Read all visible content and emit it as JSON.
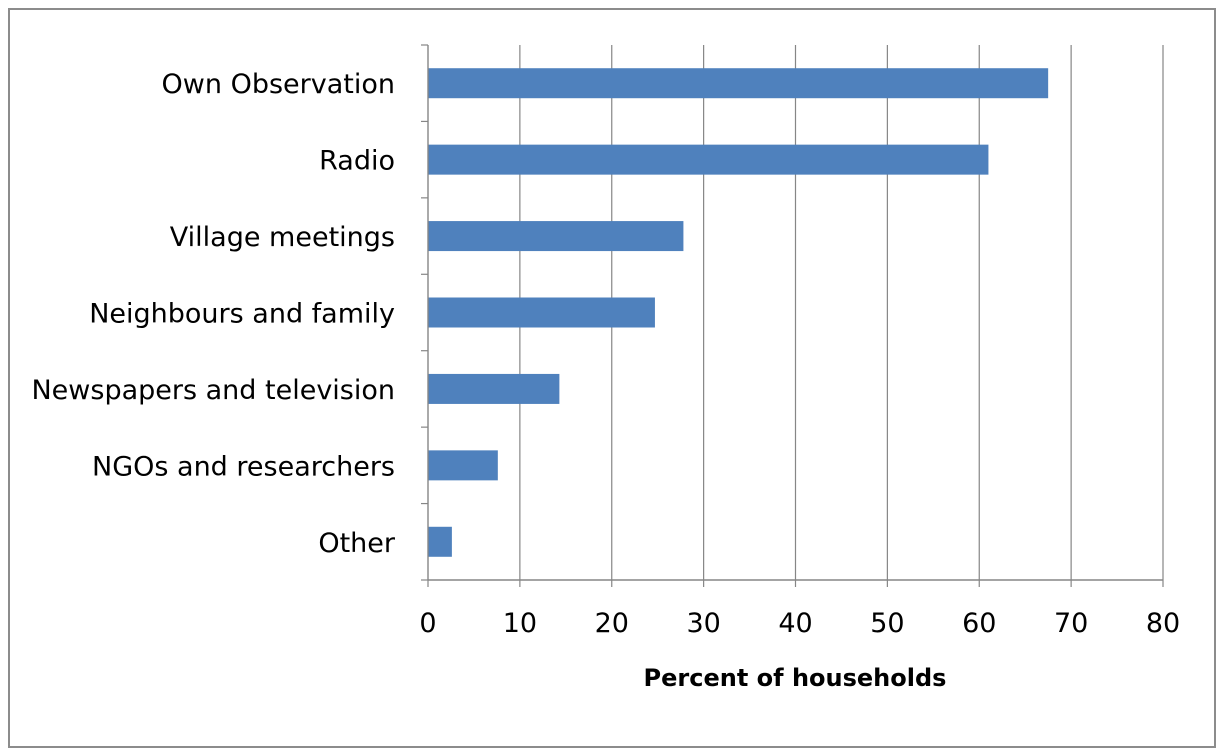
{
  "chart_data": {
    "type": "bar",
    "orientation": "horizontal",
    "categories": [
      "Own Observation",
      "Radio",
      "Village meetings",
      "Neighbours and family",
      "Newspapers and television",
      "NGOs and researchers",
      "Other"
    ],
    "values": [
      67.5,
      61,
      27.8,
      24.7,
      14.3,
      7.6,
      2.6
    ],
    "xlabel": "Percent of households",
    "ylabel": "",
    "title": "",
    "xlim": [
      0,
      80
    ],
    "xticks": [
      "0",
      "10",
      "20",
      "30",
      "40",
      "50",
      "60",
      "70",
      "80"
    ],
    "grid": "vertical",
    "legend": "none",
    "bar_color": "#4f81bd",
    "grid_color": "#868686"
  }
}
